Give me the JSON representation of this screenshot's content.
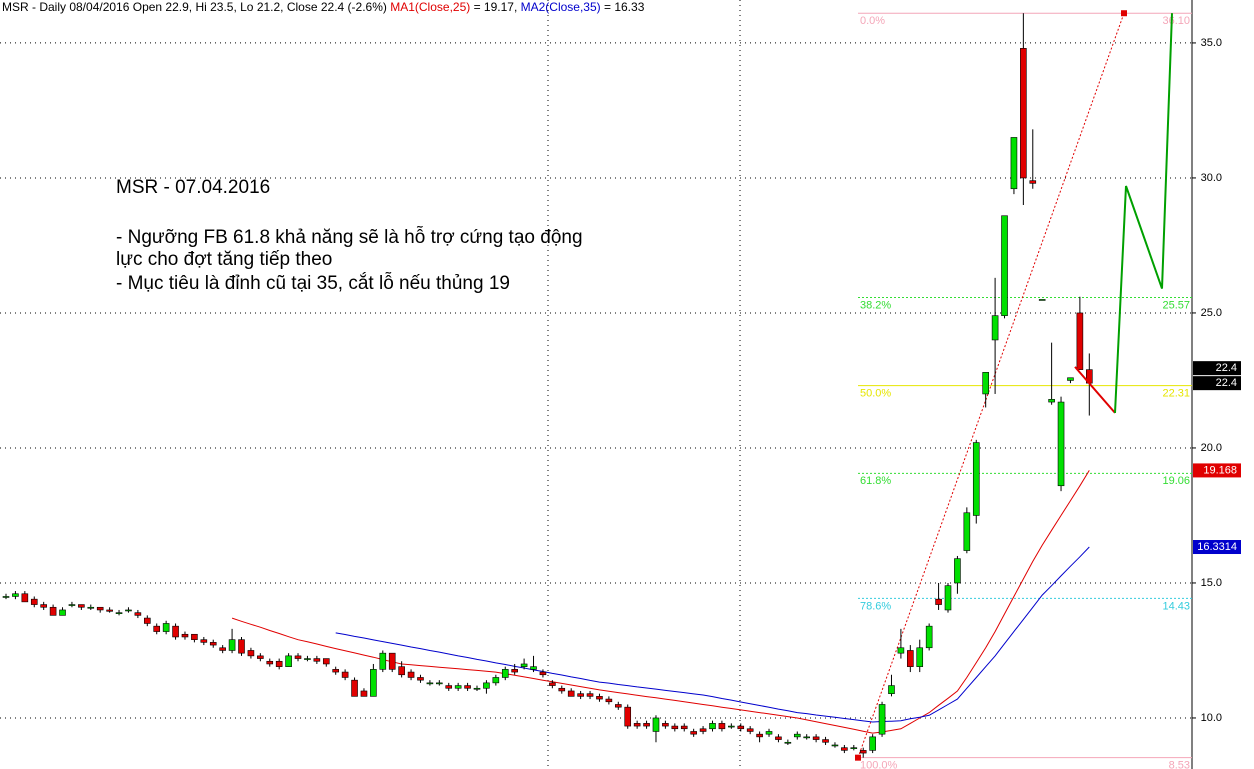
{
  "chart_data": {
    "type": "candlestick",
    "header": [
      {
        "text": "MSR - Daily 08/04/2016 Open 22.9, Hi 23.5, Lo 21.2, Close 22.4 (-2.6%) ",
        "color": "#000000"
      },
      {
        "text": "MA1(Close,25)",
        "color": "#e00000"
      },
      {
        "text": " = 19.17, ",
        "color": "#000000"
      },
      {
        "text": "MA2(Close,35)",
        "color": "#0000cc"
      },
      {
        "text": " = 16.33",
        "color": "#000000"
      }
    ],
    "annotations": [
      "MSR - 07.04.2016",
      "- Ngưỡng FB 61.8 khả năng sẽ là hỗ trợ cứng tạo động",
      "lực cho đợt tăng tiếp theo",
      "- Mục tiêu là đỉnh cũ tại 35, cắt lỗ nếu thủng 19"
    ],
    "up_color": "#00e000",
    "down_color": "#e00000",
    "open": [
      14.5,
      14.5,
      14.6,
      14.4,
      14.2,
      14.1,
      13.8,
      14.2,
      14.2,
      14.1,
      14.1,
      14.0,
      13.9,
      14.0,
      13.9,
      13.7,
      13.4,
      13.2,
      13.4,
      13.1,
      13.1,
      12.9,
      12.8,
      12.6,
      12.5,
      12.9,
      12.5,
      12.3,
      12.1,
      12.1,
      11.9,
      12.3,
      12.2,
      12.2,
      12.2,
      11.8,
      11.7,
      11.4,
      11.0,
      10.8,
      11.8,
      12.4,
      11.9,
      11.7,
      11.5,
      11.3,
      11.3,
      11.2,
      11.1,
      11.2,
      11.1,
      11.1,
      11.3,
      11.5,
      11.8,
      11.9,
      11.8,
      11.7,
      11.3,
      11.1,
      11.0,
      10.9,
      10.9,
      10.8,
      10.7,
      10.5,
      10.4,
      9.8,
      9.8,
      9.5,
      9.8,
      9.7,
      9.7,
      9.5,
      9.6,
      9.6,
      9.8,
      9.7,
      9.7,
      9.6,
      9.4,
      9.4,
      9.3,
      9.1,
      9.3,
      9.3,
      9.3,
      9.2,
      9.0,
      8.9,
      8.9,
      8.8,
      8.8,
      9.4,
      10.9,
      12.4,
      12.5,
      11.9,
      12.6,
      14.4,
      14.0,
      15.0,
      16.2,
      17.5,
      22.0,
      24.0,
      24.9,
      29.6,
      34.8,
      29.9,
      25.5,
      21.7,
      18.6,
      22.5,
      25.0,
      22.9
    ],
    "high": [
      14.6,
      14.7,
      14.7,
      14.5,
      14.3,
      14.2,
      14.1,
      14.3,
      14.2,
      14.2,
      14.1,
      14.1,
      14.0,
      14.1,
      14.0,
      13.8,
      13.5,
      13.6,
      13.5,
      13.2,
      13.1,
      13.0,
      12.9,
      12.7,
      13.3,
      13.0,
      12.6,
      12.4,
      12.2,
      12.2,
      12.4,
      12.4,
      12.3,
      12.3,
      12.2,
      11.9,
      11.8,
      11.5,
      11.1,
      12.0,
      12.5,
      12.4,
      12.1,
      11.8,
      11.6,
      11.4,
      11.4,
      11.3,
      11.3,
      11.3,
      11.2,
      11.4,
      11.6,
      11.9,
      12.0,
      12.2,
      12.3,
      11.8,
      11.4,
      11.2,
      11.1,
      11.0,
      11.0,
      10.9,
      10.8,
      10.6,
      10.5,
      9.9,
      9.9,
      10.1,
      9.9,
      9.8,
      9.8,
      9.6,
      9.7,
      9.9,
      9.9,
      9.8,
      9.8,
      9.7,
      9.5,
      9.6,
      9.4,
      9.2,
      9.5,
      9.4,
      9.4,
      9.3,
      9.1,
      9.0,
      9.0,
      8.9,
      9.4,
      10.6,
      11.6,
      13.3,
      12.7,
      12.9,
      13.5,
      15.0,
      15.0,
      16.0,
      17.8,
      20.3,
      22.8,
      26.3,
      28.6,
      31.5,
      36.1,
      31.8,
      25.5,
      23.9,
      21.9,
      22.6,
      25.6,
      23.5
    ],
    "low": [
      14.4,
      14.4,
      14.3,
      14.1,
      14.0,
      13.8,
      13.8,
      14.1,
      14.0,
      14.0,
      13.9,
      13.9,
      13.8,
      13.9,
      13.7,
      13.4,
      13.1,
      13.1,
      12.9,
      12.9,
      12.8,
      12.7,
      12.6,
      12.4,
      12.4,
      12.3,
      12.2,
      12.1,
      11.9,
      11.8,
      11.9,
      12.1,
      12.1,
      12.0,
      11.9,
      11.6,
      11.4,
      10.8,
      10.8,
      10.8,
      11.7,
      11.7,
      11.5,
      11.4,
      11.3,
      11.2,
      11.2,
      11.0,
      11.0,
      11.0,
      11.0,
      10.9,
      11.2,
      11.4,
      11.6,
      11.8,
      11.7,
      11.5,
      11.1,
      10.9,
      10.8,
      10.7,
      10.7,
      10.6,
      10.5,
      10.3,
      9.6,
      9.6,
      9.6,
      9.1,
      9.6,
      9.5,
      9.5,
      9.3,
      9.4,
      9.5,
      9.5,
      9.6,
      9.5,
      9.4,
      9.1,
      9.3,
      9.1,
      9.0,
      9.2,
      9.2,
      9.1,
      9.0,
      8.9,
      8.7,
      8.8,
      8.53,
      8.7,
      9.3,
      10.8,
      12.2,
      11.7,
      11.7,
      12.5,
      14.0,
      13.9,
      14.6,
      16.1,
      17.2,
      21.5,
      22.0,
      24.8,
      29.4,
      29.0,
      29.6,
      25.5,
      21.6,
      18.4,
      22.4,
      22.9,
      21.2
    ],
    "close": [
      14.5,
      14.6,
      14.3,
      14.2,
      14.1,
      13.8,
      14.0,
      14.2,
      14.1,
      14.1,
      14.0,
      13.95,
      13.9,
      14.0,
      13.8,
      13.5,
      13.2,
      13.5,
      13.0,
      13.0,
      12.9,
      12.8,
      12.7,
      12.5,
      12.9,
      12.4,
      12.3,
      12.2,
      12.0,
      11.9,
      12.3,
      12.2,
      12.2,
      12.1,
      12.0,
      11.7,
      11.5,
      10.8,
      10.8,
      11.8,
      12.4,
      11.8,
      11.6,
      11.5,
      11.4,
      11.3,
      11.3,
      11.1,
      11.2,
      11.1,
      11.1,
      11.3,
      11.5,
      11.8,
      11.7,
      12.0,
      11.9,
      11.6,
      11.2,
      11.0,
      10.8,
      10.8,
      10.8,
      10.7,
      10.6,
      10.4,
      9.7,
      9.7,
      9.7,
      10.0,
      9.7,
      9.6,
      9.6,
      9.4,
      9.5,
      9.8,
      9.6,
      9.7,
      9.6,
      9.5,
      9.3,
      9.5,
      9.2,
      9.1,
      9.4,
      9.3,
      9.2,
      9.1,
      9.0,
      8.8,
      8.9,
      8.7,
      9.3,
      10.5,
      11.2,
      12.6,
      11.9,
      12.6,
      13.4,
      14.2,
      14.9,
      15.9,
      17.6,
      20.2,
      22.8,
      24.9,
      28.6,
      31.5,
      30.0,
      29.8,
      25.5,
      21.8,
      21.7,
      22.6,
      22.9,
      22.4
    ],
    "series": [
      {
        "name": "MA1(Close,25)",
        "color": "#e00000",
        "values": [
          null,
          null,
          null,
          null,
          null,
          null,
          null,
          null,
          null,
          null,
          null,
          null,
          null,
          null,
          null,
          null,
          null,
          null,
          null,
          null,
          null,
          null,
          null,
          null,
          13.7,
          13.58,
          13.47,
          13.36,
          13.24,
          13.13,
          13.01,
          12.9,
          12.82,
          12.74,
          12.65,
          12.57,
          12.49,
          12.41,
          12.33,
          12.25,
          12.16,
          12.08,
          12.0,
          11.97,
          11.94,
          11.91,
          11.88,
          11.85,
          11.82,
          11.79,
          11.76,
          11.73,
          11.7,
          11.64,
          11.58,
          11.52,
          11.46,
          11.4,
          11.34,
          11.28,
          11.22,
          11.16,
          11.1,
          11.04,
          10.99,
          10.94,
          10.89,
          10.84,
          10.79,
          10.75,
          10.7,
          10.65,
          10.6,
          10.55,
          10.5,
          10.45,
          10.4,
          10.35,
          10.3,
          10.25,
          10.2,
          10.15,
          10.1,
          10.05,
          10.0,
          9.93,
          9.86,
          9.79,
          9.72,
          9.65,
          9.58,
          9.51,
          9.44,
          9.48,
          9.54,
          9.6,
          9.8,
          10.0,
          10.2,
          10.47,
          10.73,
          11.0,
          11.5,
          12.05,
          12.6,
          13.2,
          13.85,
          14.5,
          15.15,
          15.8,
          16.4,
          16.95,
          17.5,
          18.05,
          18.6,
          19.17
        ]
      },
      {
        "name": "MA2(Close,35)",
        "color": "#0000cc",
        "values": [
          null,
          null,
          null,
          null,
          null,
          null,
          null,
          null,
          null,
          null,
          null,
          null,
          null,
          null,
          null,
          null,
          null,
          null,
          null,
          null,
          null,
          null,
          null,
          null,
          null,
          null,
          null,
          null,
          null,
          null,
          null,
          null,
          null,
          null,
          null,
          13.15,
          13.09,
          13.02,
          12.96,
          12.89,
          12.83,
          12.76,
          12.7,
          12.63,
          12.57,
          12.5,
          12.44,
          12.37,
          12.3,
          12.24,
          12.17,
          12.11,
          12.04,
          11.98,
          11.91,
          11.85,
          11.78,
          11.72,
          11.65,
          11.59,
          11.52,
          11.46,
          11.39,
          11.33,
          11.29,
          11.24,
          11.2,
          11.15,
          11.11,
          11.07,
          11.02,
          10.98,
          10.94,
          10.89,
          10.85,
          10.79,
          10.72,
          10.66,
          10.59,
          10.53,
          10.46,
          10.4,
          10.33,
          10.27,
          10.2,
          10.16,
          10.11,
          10.07,
          10.03,
          9.98,
          9.94,
          9.89,
          9.85,
          9.87,
          9.88,
          9.9,
          9.97,
          10.03,
          10.1,
          10.3,
          10.5,
          10.7,
          11.1,
          11.5,
          11.9,
          12.3,
          12.75,
          13.2,
          13.65,
          14.1,
          14.55,
          14.9,
          15.26,
          15.62,
          15.97,
          16.33
        ]
      }
    ],
    "ylim": [
      8.11,
      36.59
    ],
    "yticks": [
      {
        "value": 10,
        "label": "10.0"
      },
      {
        "value": 15,
        "label": "15.0"
      },
      {
        "value": 20,
        "label": "20.0"
      },
      {
        "value": 25,
        "label": "25.0"
      },
      {
        "value": 30,
        "label": "30.0"
      },
      {
        "value": 35,
        "label": "35.0"
      }
    ],
    "grid": true,
    "fib_levels": [
      {
        "label": "0.0%",
        "value": 36.1,
        "value_label": "36.10",
        "color": "#f4a6b8",
        "dash": false
      },
      {
        "label": "38.2%",
        "value": 25.57,
        "color": "#33dd33",
        "dash": true
      },
      {
        "label": "50.0%",
        "value": 22.31,
        "color": "#e6e600",
        "dash": false
      },
      {
        "label": "61.8%",
        "value": 19.06,
        "color": "#33dd33",
        "dash": true
      },
      {
        "label": "78.6%",
        "value": 14.43,
        "color": "#33ccdd",
        "dash": true
      },
      {
        "label": "100.0%",
        "value": 8.53,
        "color": "#f4a6b8",
        "dash": false
      }
    ],
    "projection": [
      {
        "color": "#e00000",
        "values": [
          23.0,
          21.3
        ]
      },
      {
        "color": "#00a000",
        "values": [
          21.3,
          29.7,
          25.9,
          36.1
        ]
      }
    ],
    "price_tags": [
      {
        "value": 22.4,
        "bg": "#000000",
        "fg": "#ffffff"
      },
      {
        "value": 22.4,
        "bg": "#000000",
        "fg": "#ffffff"
      },
      {
        "value": 19.168,
        "bg": "#e00000",
        "fg": "#ffffff"
      },
      {
        "value": 16.3314,
        "bg": "#0000cc",
        "fg": "#ffffff"
      }
    ]
  }
}
